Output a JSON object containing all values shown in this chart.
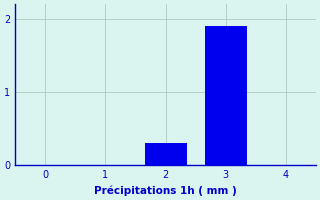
{
  "categories": [
    0,
    1,
    2,
    3,
    4
  ],
  "values": [
    0,
    0,
    0.3,
    1.9,
    0
  ],
  "bar_color": "#0000ee",
  "background_color": "#daf5f0",
  "xlabel": "Précipitations 1h ( mm )",
  "xlabel_color": "#0000cc",
  "tick_color": "#0000cc",
  "ylim": [
    0,
    2.2
  ],
  "xlim": [
    -0.5,
    4.5
  ],
  "yticks": [
    0,
    1,
    2
  ],
  "xticks": [
    0,
    1,
    2,
    3,
    4
  ],
  "grid_color": "#b0c8c0",
  "bar_width": 0.7,
  "xlabel_fontsize": 7.5,
  "tick_fontsize": 7,
  "axis_linecolor": "#0000cc"
}
